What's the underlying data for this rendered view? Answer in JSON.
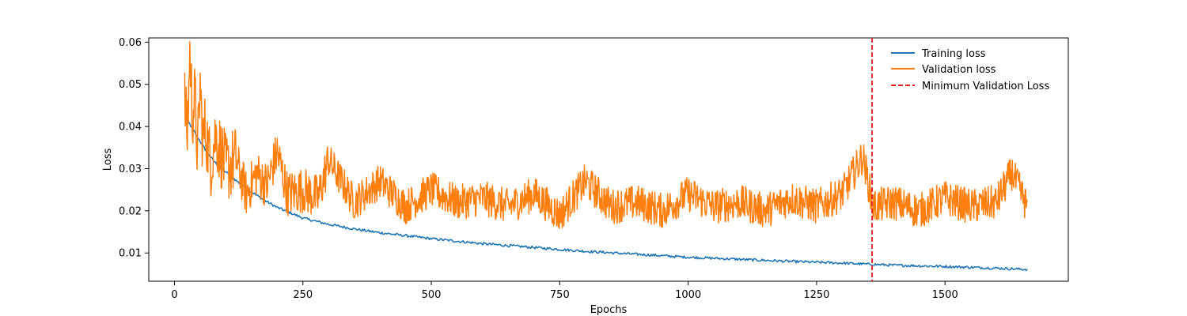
{
  "chart_data": {
    "type": "line",
    "title": "",
    "xlabel": "Epochs",
    "ylabel": "Loss",
    "xlim": [
      -50,
      1740
    ],
    "ylim": [
      0.0033,
      0.061
    ],
    "xticks": [
      0,
      250,
      500,
      750,
      1000,
      1250,
      1500
    ],
    "yticks": [
      0.01,
      0.02,
      0.03,
      0.04,
      0.05,
      0.06
    ],
    "xtick_labels": [
      "0",
      "250",
      "500",
      "750",
      "1000",
      "1250",
      "1500"
    ],
    "ytick_labels": [
      "0.01",
      "0.02",
      "0.03",
      "0.04",
      "0.05",
      "0.06"
    ],
    "grid": false,
    "legend": {
      "position": "top-right",
      "frame": false
    },
    "series": [
      {
        "name": "Training loss",
        "color": "#1f77b4",
        "style": "solid",
        "x": [
          20,
          30,
          40,
          50,
          60,
          75,
          90,
          110,
          130,
          150,
          175,
          200,
          250,
          300,
          350,
          400,
          500,
          600,
          700,
          800,
          900,
          1000,
          1100,
          1200,
          1300,
          1400,
          1500,
          1600,
          1660
        ],
        "y": [
          0.0425,
          0.0405,
          0.0385,
          0.0365,
          0.0345,
          0.032,
          0.0302,
          0.0282,
          0.0262,
          0.0245,
          0.0225,
          0.0208,
          0.0183,
          0.0168,
          0.0157,
          0.0148,
          0.0134,
          0.0122,
          0.0113,
          0.0104,
          0.0097,
          0.009,
          0.0085,
          0.008,
          0.0076,
          0.0071,
          0.0068,
          0.0064,
          0.0061
        ]
      },
      {
        "name": "Validation loss",
        "color": "#ff7f0e",
        "style": "solid",
        "x": [
          20,
          25,
          30,
          35,
          40,
          45,
          50,
          55,
          60,
          70,
          80,
          90,
          100,
          120,
          140,
          160,
          180,
          200,
          220,
          250,
          280,
          300,
          350,
          400,
          450,
          500,
          550,
          600,
          650,
          700,
          750,
          800,
          850,
          900,
          950,
          1000,
          1050,
          1100,
          1150,
          1200,
          1250,
          1300,
          1340,
          1360,
          1400,
          1450,
          1500,
          1550,
          1600,
          1630,
          1660
        ],
        "y": [
          0.046,
          0.038,
          0.0575,
          0.043,
          0.047,
          0.033,
          0.05,
          0.036,
          0.04,
          0.031,
          0.038,
          0.034,
          0.03,
          0.032,
          0.024,
          0.029,
          0.026,
          0.034,
          0.024,
          0.025,
          0.023,
          0.032,
          0.022,
          0.027,
          0.021,
          0.025,
          0.022,
          0.023,
          0.021,
          0.024,
          0.019,
          0.027,
          0.021,
          0.022,
          0.02,
          0.024,
          0.021,
          0.022,
          0.02,
          0.023,
          0.021,
          0.024,
          0.033,
          0.021,
          0.022,
          0.02,
          0.023,
          0.021,
          0.022,
          0.029,
          0.021
        ]
      }
    ],
    "vline": {
      "name": "Minimum Validation Loss",
      "color": "#e31a1c",
      "style": "dashed",
      "x": 1358
    }
  }
}
